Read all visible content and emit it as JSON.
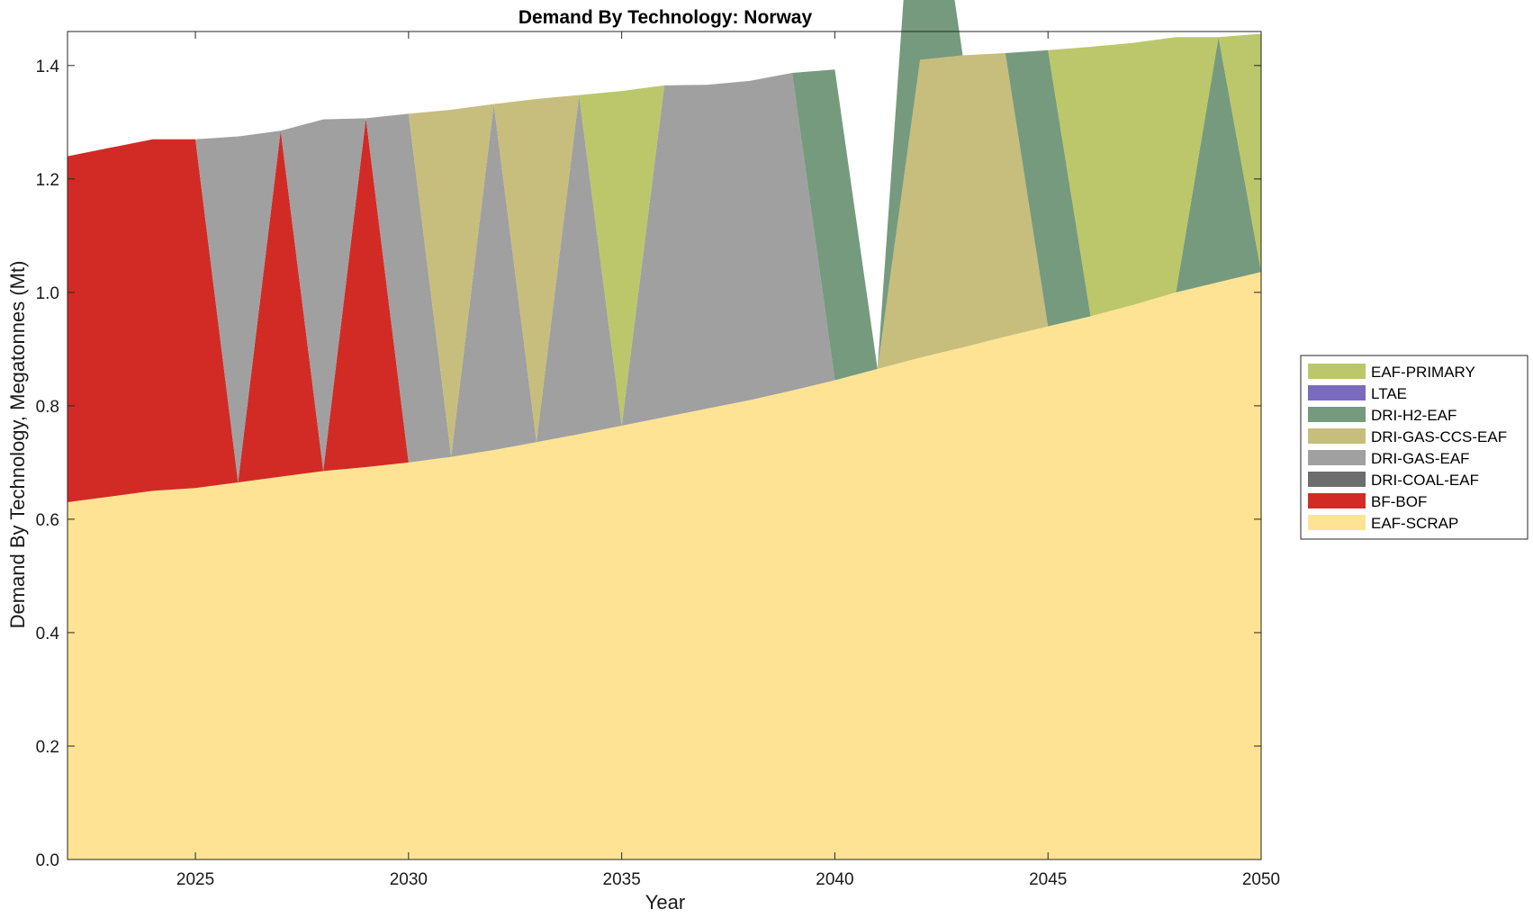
{
  "chart_data": {
    "type": "area",
    "title": "Demand By Technology: Norway",
    "xlabel": "Year",
    "ylabel": "Demand By Technology, Megatonnes (Mt)",
    "xlim": [
      2022,
      2050
    ],
    "ylim": [
      0,
      1.46
    ],
    "xticks": [
      2025,
      2030,
      2035,
      2040,
      2045,
      2050
    ],
    "yticks": [
      "0.0",
      "0.2",
      "0.4",
      "0.6",
      "0.8",
      "1.0",
      "1.2",
      "1.4"
    ],
    "grid": false,
    "legend_position": "right",
    "x": [
      2022,
      2023,
      2024,
      2025,
      2026,
      2027,
      2028,
      2029,
      2030,
      2031,
      2032,
      2033,
      2034,
      2035,
      2036,
      2037,
      2038,
      2039,
      2040,
      2041,
      2042,
      2043,
      2044,
      2045,
      2046,
      2047,
      2048,
      2049,
      2050
    ],
    "series": [
      {
        "name": "EAF-SCRAP",
        "color": "#fde393",
        "values": [
          0.63,
          0.64,
          0.65,
          0.655,
          0.665,
          0.675,
          0.685,
          0.692,
          0.7,
          0.71,
          0.722,
          0.736,
          0.75,
          0.765,
          0.78,
          0.795,
          0.81,
          0.827,
          0.845,
          0.865,
          0.885,
          0.903,
          0.922,
          0.94,
          0.958,
          0.978,
          1.0,
          1.018,
          1.036
        ]
      },
      {
        "name": "BF-BOF",
        "color": "#d22b25",
        "values": [
          0.61,
          0.615,
          0.62,
          0.615,
          0,
          0.61,
          0,
          0.615,
          0,
          0,
          0,
          0,
          0,
          0,
          0,
          0,
          0,
          0,
          0,
          0,
          0,
          0,
          0,
          0,
          0,
          0,
          0,
          0,
          0
        ]
      },
      {
        "name": "DRI-COAL-EAF",
        "color": "#6d6d6d",
        "values": [
          0,
          0,
          0,
          0,
          0,
          0,
          0,
          0,
          0,
          0,
          0,
          0,
          0,
          0,
          0,
          0,
          0,
          0,
          0,
          0,
          0,
          0,
          0,
          0,
          0,
          0,
          0,
          0,
          0
        ]
      },
      {
        "name": "DRI-GAS-EAF",
        "color": "#a0a0a0",
        "values": [
          0,
          0,
          0,
          0,
          0.61,
          0,
          0.62,
          0,
          0.615,
          0,
          0.61,
          0,
          0.598,
          0,
          0.585,
          0.571,
          0.563,
          0.56,
          0,
          0,
          0,
          0,
          0,
          0,
          0,
          0,
          0,
          0,
          0
        ]
      },
      {
        "name": "DRI-GAS-CCS-EAF",
        "color": "#c7bd7d",
        "values": [
          0,
          0,
          0,
          0,
          0,
          0,
          0,
          0,
          0,
          0.612,
          0,
          0.605,
          0,
          0,
          0,
          0,
          0,
          0,
          0,
          0,
          0.525,
          0.515,
          0.5,
          0,
          0,
          0,
          0,
          0,
          0
        ]
      },
      {
        "name": "DRI-H2-EAF",
        "color": "#769a7d",
        "values": [
          0,
          0,
          0,
          0,
          0,
          0,
          0,
          0,
          0,
          0,
          0,
          0,
          0,
          0,
          0,
          0,
          0,
          0,
          0.548,
          0,
          0.522,
          0,
          0,
          0.487,
          0,
          0,
          0,
          0.432,
          0
        ]
      },
      {
        "name": "LTAE",
        "color": "#7b6bbf",
        "values": [
          0,
          0,
          0,
          0,
          0,
          0,
          0,
          0,
          0,
          0,
          0,
          0,
          0,
          0,
          0,
          0,
          0,
          0,
          0,
          0,
          0,
          0,
          0,
          0,
          0,
          0,
          0,
          0,
          0
        ]
      },
      {
        "name": "EAF-PRIMARY",
        "color": "#bbc76a",
        "values": [
          0,
          0,
          0,
          0,
          0,
          0,
          0,
          0,
          0,
          0,
          0,
          0,
          0,
          0.59,
          0,
          0,
          0,
          0,
          0,
          0,
          0,
          0,
          0,
          0,
          0.475,
          0.462,
          0.45,
          0,
          0.42
        ]
      }
    ],
    "legend_order": [
      "EAF-PRIMARY",
      "LTAE",
      "DRI-H2-EAF",
      "DRI-GAS-CCS-EAF",
      "DRI-GAS-EAF",
      "DRI-COAL-EAF",
      "BF-BOF",
      "EAF-SCRAP"
    ]
  }
}
